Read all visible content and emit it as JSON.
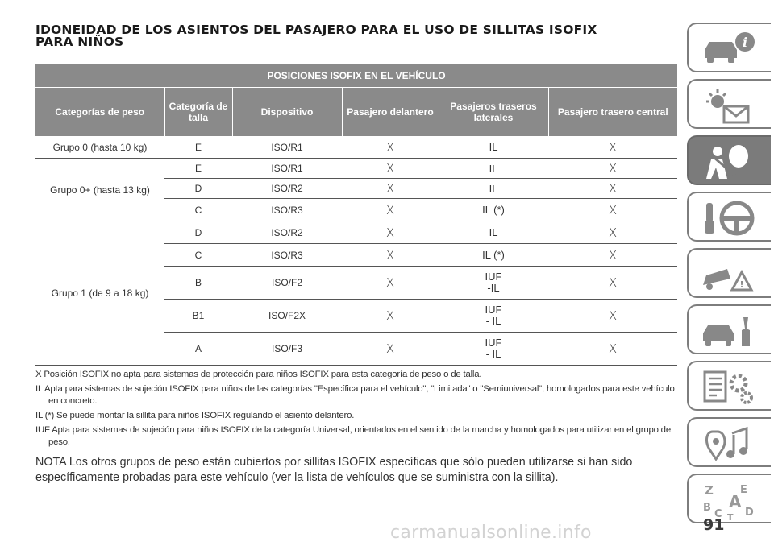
{
  "title": {
    "line1": "IDONEIDAD DE LOS ASIENTOS DEL PASAJERO PARA EL USO DE SILLITAS ISOFIX",
    "line2": "PARA NIÑOS"
  },
  "table": {
    "top_header": "POSICIONES ISOFIX EN EL VEHÍCULO",
    "columns": [
      "Categorías de peso",
      "Categoría de talla",
      "Dispositivo",
      "Pasajero delantero",
      "Pasajeros traseros laterales",
      "Pasajero trasero central"
    ],
    "groups": [
      {
        "name": "Grupo 0 (hasta 10 kg)",
        "rows": [
          {
            "size": "E",
            "device": "ISO/R1",
            "front": "X",
            "rear_side": "IL",
            "rear_center": "X"
          }
        ]
      },
      {
        "name": "Grupo 0+ (hasta 13 kg)",
        "rows": [
          {
            "size": "E",
            "device": "ISO/R1",
            "front": "X",
            "rear_side": "IL",
            "rear_center": "X"
          },
          {
            "size": "D",
            "device": "ISO/R2",
            "front": "X",
            "rear_side": "IL",
            "rear_center": "X"
          },
          {
            "size": "C",
            "device": "ISO/R3",
            "front": "X",
            "rear_side": "IL (*)",
            "rear_center": "X"
          }
        ]
      },
      {
        "name": "Grupo 1 (de 9 a 18 kg)",
        "rows": [
          {
            "size": "D",
            "device": "ISO/R2",
            "front": "X",
            "rear_side": "IL",
            "rear_center": "X"
          },
          {
            "size": "C",
            "device": "ISO/R3",
            "front": "X",
            "rear_side": "IL (*)",
            "rear_center": "X"
          },
          {
            "size": "B",
            "device": "ISO/F2",
            "front": "X",
            "rear_side_1": "IUF",
            "rear_side_2": "-IL",
            "rear_center": "X"
          },
          {
            "size": "B1",
            "device": "ISO/F2X",
            "front": "X",
            "rear_side_1": "IUF",
            "rear_side_2": "- IL",
            "rear_center": "X"
          },
          {
            "size": "A",
            "device": "ISO/F3",
            "front": "X",
            "rear_side_1": "IUF",
            "rear_side_2": "- IL",
            "rear_center": "X"
          }
        ]
      }
    ]
  },
  "notes": [
    "X Posición ISOFIX no apta para sistemas de protección para niños ISOFIX para esta categoría de peso o de talla.",
    "IL Apta para sistemas de sujeción ISOFIX para niños de las categorías \"Específica para el vehículo\", \"Limitada\" o \"Semiuniversal\", homologados para este vehículo en concreto.",
    "IL (*) Se puede montar la sillita para niños ISOFIX regulando el asiento delantero.",
    "IUF Apta para sistemas de sujeción para niños ISOFIX de la categoría Universal, orientados en el sentido de la marcha y homologados para utilizar en el grupo de peso."
  ],
  "nota": "NOTA  Los otros grupos de peso están cubiertos por sillitas ISOFIX específicas que sólo pueden utilizarse si han sido específicamente probadas para este vehículo (ver la lista de vehículos que se suministra con la sillita).",
  "page_number": "91",
  "watermark": "carmanualsonline.info",
  "sidebar_tabs": [
    {
      "icon": "car-info-icon",
      "active": false
    },
    {
      "icon": "warning-lights-icon",
      "active": false
    },
    {
      "icon": "airbag-seatbelt-icon",
      "active": true
    },
    {
      "icon": "key-steering-wheel-icon",
      "active": false
    },
    {
      "icon": "accident-warning-icon",
      "active": false
    },
    {
      "icon": "car-service-icon",
      "active": false
    },
    {
      "icon": "specs-gear-icon",
      "active": false
    },
    {
      "icon": "multimedia-icon",
      "active": false
    },
    {
      "icon": "alphabetical-index-icon",
      "active": false
    }
  ],
  "colors": {
    "header_bg": "#8a8a8a",
    "active_tab": "#7b7b7b"
  }
}
